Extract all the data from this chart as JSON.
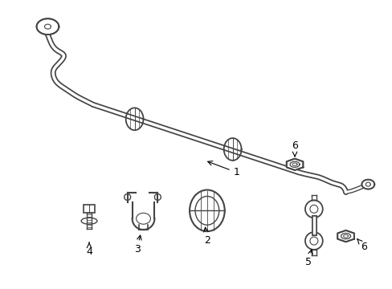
{
  "background_color": "#ffffff",
  "line_color": "#444444",
  "fig_width": 4.89,
  "fig_height": 3.6,
  "dpi": 100
}
